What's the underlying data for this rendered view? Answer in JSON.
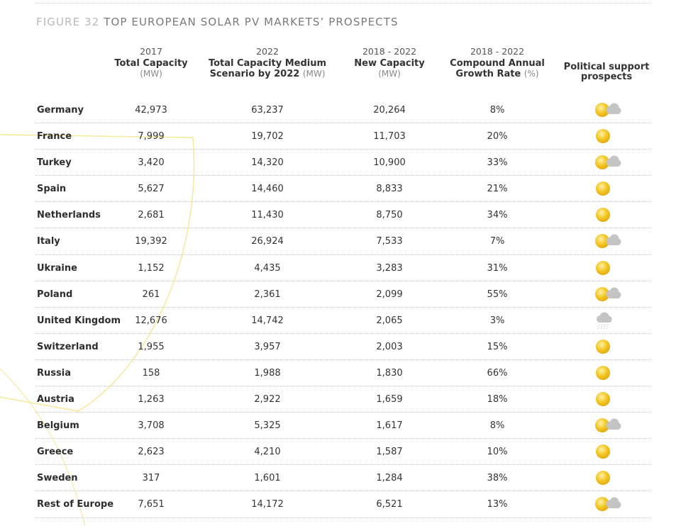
{
  "figure": {
    "label": "FIGURE 32",
    "title": "TOP EUROPEAN SOLAR PV MARKETS’ PROSPECTS"
  },
  "headers": [
    {
      "year": "2017",
      "title_line1": "Total Capacity",
      "title_line2": "",
      "unit": "(MW)"
    },
    {
      "year": "2022",
      "title_line1": "Total Capacity Medium",
      "title_line2": "Scenario by 2022",
      "unit": "(MW)"
    },
    {
      "year": "2018 - 2022",
      "title_line1": "New Capacity",
      "title_line2": "",
      "unit": "(MW)"
    },
    {
      "year": "2018 - 2022",
      "title_line1": "Compound Annual",
      "title_line2": "Growth Rate",
      "unit": "(%)"
    },
    {
      "year": "",
      "title_line1": "Political support",
      "title_line2": "prospects",
      "unit": ""
    }
  ],
  "rows": [
    {
      "country": "Germany",
      "total_2017": "42,973",
      "total_2022": "63,237",
      "new_capacity": "20,264",
      "cagr": "8%",
      "prospect_icon": "sun-cloud-icon"
    },
    {
      "country": "France",
      "total_2017": "7,999",
      "total_2022": "19,702",
      "new_capacity": "11,703",
      "cagr": "20%",
      "prospect_icon": "sun-icon"
    },
    {
      "country": "Turkey",
      "total_2017": "3,420",
      "total_2022": "14,320",
      "new_capacity": "10,900",
      "cagr": "33%",
      "prospect_icon": "sun-cloud-icon"
    },
    {
      "country": "Spain",
      "total_2017": "5,627",
      "total_2022": "14,460",
      "new_capacity": "8,833",
      "cagr": "21%",
      "prospect_icon": "sun-icon"
    },
    {
      "country": "Netherlands",
      "total_2017": "2,681",
      "total_2022": "11,430",
      "new_capacity": "8,750",
      "cagr": "34%",
      "prospect_icon": "sun-icon"
    },
    {
      "country": "Italy",
      "total_2017": "19,392",
      "total_2022": "26,924",
      "new_capacity": "7,533",
      "cagr": "7%",
      "prospect_icon": "sun-cloud-icon"
    },
    {
      "country": "Ukraine",
      "total_2017": "1,152",
      "total_2022": "4,435",
      "new_capacity": "3,283",
      "cagr": "31%",
      "prospect_icon": "sun-icon"
    },
    {
      "country": "Poland",
      "total_2017": "261",
      "total_2022": "2,361",
      "new_capacity": "2,099",
      "cagr": "55%",
      "prospect_icon": "sun-cloud-icon"
    },
    {
      "country": "United Kingdom",
      "total_2017": "12,676",
      "total_2022": "14,742",
      "new_capacity": "2,065",
      "cagr": "3%",
      "prospect_icon": "rain-cloud-icon"
    },
    {
      "country": "Switzerland",
      "total_2017": "1,955",
      "total_2022": "3,957",
      "new_capacity": "2,003",
      "cagr": "15%",
      "prospect_icon": "sun-icon"
    },
    {
      "country": "Russia",
      "total_2017": "158",
      "total_2022": "1,988",
      "new_capacity": "1,830",
      "cagr": "66%",
      "prospect_icon": "sun-icon"
    },
    {
      "country": "Austria",
      "total_2017": "1,263",
      "total_2022": "2,922",
      "new_capacity": "1,659",
      "cagr": "18%",
      "prospect_icon": "sun-icon"
    },
    {
      "country": "Belgium",
      "total_2017": "3,708",
      "total_2022": "5,325",
      "new_capacity": "1,617",
      "cagr": "8%",
      "prospect_icon": "sun-cloud-icon"
    },
    {
      "country": "Greece",
      "total_2017": "2,623",
      "total_2022": "4,210",
      "new_capacity": "1,587",
      "cagr": "10%",
      "prospect_icon": "sun-icon"
    },
    {
      "country": "Sweden",
      "total_2017": "317",
      "total_2022": "1,601",
      "new_capacity": "1,284",
      "cagr": "38%",
      "prospect_icon": "sun-icon"
    },
    {
      "country": "Rest of Europe",
      "total_2017": "7,651",
      "total_2022": "14,172",
      "new_capacity": "6,521",
      "cagr": "13%",
      "prospect_icon": "sun-cloud-icon"
    }
  ],
  "colors": {
    "sun": "#f3c623",
    "sun_dark": "#e0a80f",
    "cloud": "#c4c4c4",
    "decor_line": "#f6eaa0"
  }
}
